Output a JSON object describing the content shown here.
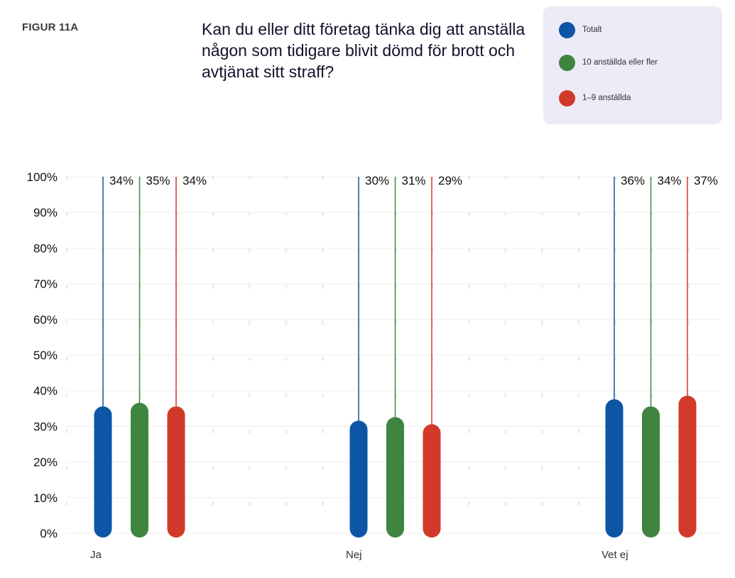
{
  "figure_label": "FIGUR 11A",
  "title": "Kan du eller ditt företag tänka dig att anställa någon som tidigare blivit dömd för brott och avtjänat sitt straff?",
  "legend": [
    {
      "label": "Totalt",
      "color": "#0d56a6"
    },
    {
      "label": "10 anställda eller fler",
      "color": "#3f8540"
    },
    {
      "label": "1–9 anställda",
      "color": "#d13a2a"
    }
  ],
  "chart_data": {
    "type": "bar",
    "categories": [
      "Ja",
      "Nej",
      "Vet ej"
    ],
    "series": [
      {
        "name": "Totalt",
        "color": "#0d56a6",
        "values": [
          34,
          30,
          36
        ]
      },
      {
        "name": "10 anställda eller fler",
        "color": "#3f8540",
        "values": [
          35,
          31,
          34
        ]
      },
      {
        "name": "1–9 anställda",
        "color": "#d13a2a",
        "values": [
          34,
          29,
          37
        ]
      }
    ],
    "value_labels": [
      [
        "34%",
        "30%",
        "36%"
      ],
      [
        "35%",
        "31%",
        "34%"
      ],
      [
        "34%",
        "29%",
        "37%"
      ]
    ],
    "yticks": [
      "0%",
      "10%",
      "20%",
      "30%",
      "40%",
      "50%",
      "60%",
      "70%",
      "80%",
      "90%",
      "100%"
    ],
    "ylim": [
      0,
      100
    ],
    "grid": true,
    "legend_position": "top-right"
  }
}
